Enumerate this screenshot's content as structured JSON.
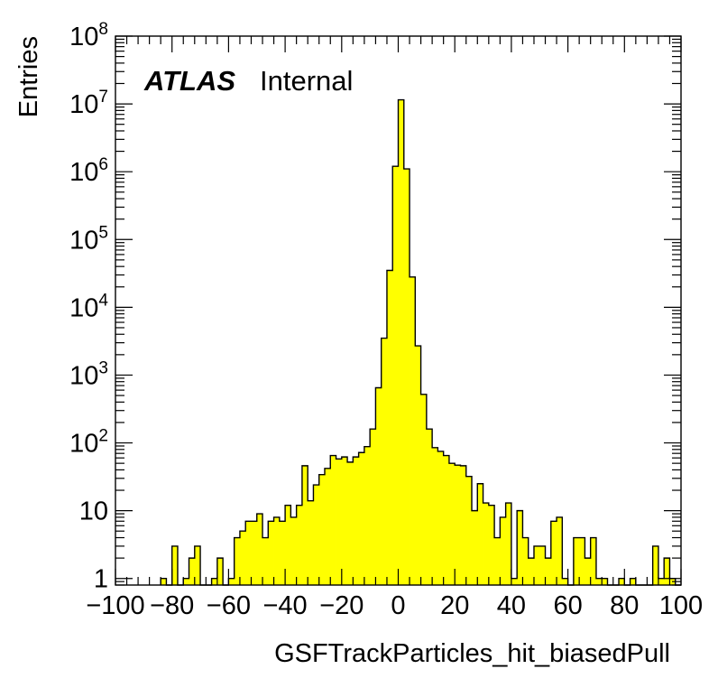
{
  "chart_data": {
    "type": "bar",
    "style": "histogram-step",
    "fill_color": "#ffff00",
    "line_color": "#000000",
    "label_brand": "ATLAS",
    "label_status": "Internal",
    "xlabel": "GSFTrackParticles_hit_biasedPull",
    "ylabel": "Entries",
    "xlim": [
      -100,
      100
    ],
    "ylim": [
      0.8,
      100000000
    ],
    "log_y": true,
    "grid": false,
    "bin_width": 2,
    "x_ticks": [
      "−100",
      "−80",
      "−60",
      "−40",
      "−20",
      "0",
      "20",
      "40",
      "60",
      "80",
      "100"
    ],
    "x_tick_values": [
      -100,
      -80,
      -60,
      -40,
      -20,
      0,
      20,
      40,
      60,
      80,
      100
    ],
    "y_ticks": [
      {
        "value": 1,
        "base": "1",
        "exp": ""
      },
      {
        "value": 10,
        "base": "10",
        "exp": ""
      },
      {
        "value": 100,
        "base": "10",
        "exp": "2"
      },
      {
        "value": 1000,
        "base": "10",
        "exp": "3"
      },
      {
        "value": 10000,
        "base": "10",
        "exp": "4"
      },
      {
        "value": 100000,
        "base": "10",
        "exp": "5"
      },
      {
        "value": 1000000,
        "base": "10",
        "exp": "6"
      },
      {
        "value": 10000000,
        "base": "10",
        "exp": "7"
      },
      {
        "value": 100000000,
        "base": "10",
        "exp": "8"
      }
    ],
    "bins": [
      [
        -84,
        1
      ],
      [
        -82,
        0
      ],
      [
        -80,
        3
      ],
      [
        -78,
        0
      ],
      [
        -76,
        1
      ],
      [
        -74,
        2
      ],
      [
        -72,
        3
      ],
      [
        -70,
        0
      ],
      [
        -68,
        0
      ],
      [
        -66,
        1
      ],
      [
        -64,
        2
      ],
      [
        -62,
        0
      ],
      [
        -60,
        1
      ],
      [
        -58,
        4
      ],
      [
        -56,
        5
      ],
      [
        -54,
        7
      ],
      [
        -52,
        7
      ],
      [
        -50,
        9
      ],
      [
        -48,
        4
      ],
      [
        -46,
        7
      ],
      [
        -44,
        8
      ],
      [
        -42,
        7
      ],
      [
        -40,
        12
      ],
      [
        -38,
        8
      ],
      [
        -36,
        12
      ],
      [
        -34,
        46
      ],
      [
        -32,
        14
      ],
      [
        -30,
        24
      ],
      [
        -28,
        34
      ],
      [
        -26,
        42
      ],
      [
        -24,
        65
      ],
      [
        -22,
        58
      ],
      [
        -20,
        62
      ],
      [
        -18,
        52
      ],
      [
        -16,
        62
      ],
      [
        -14,
        72
      ],
      [
        -12,
        88
      ],
      [
        -10,
        160
      ],
      [
        -8,
        650
      ],
      [
        -6,
        3500
      ],
      [
        -4,
        35000
      ],
      [
        -2,
        1200000
      ],
      [
        0,
        11500000
      ],
      [
        2,
        1100000
      ],
      [
        4,
        28000
      ],
      [
        6,
        2700
      ],
      [
        8,
        520
      ],
      [
        10,
        160
      ],
      [
        12,
        85
      ],
      [
        14,
        75
      ],
      [
        16,
        65
      ],
      [
        18,
        50
      ],
      [
        20,
        47
      ],
      [
        22,
        46
      ],
      [
        24,
        32
      ],
      [
        26,
        10
      ],
      [
        28,
        25
      ],
      [
        30,
        13
      ],
      [
        32,
        12
      ],
      [
        34,
        4
      ],
      [
        36,
        8
      ],
      [
        38,
        13
      ],
      [
        40,
        1
      ],
      [
        42,
        10
      ],
      [
        44,
        4
      ],
      [
        46,
        2
      ],
      [
        48,
        3
      ],
      [
        50,
        3
      ],
      [
        52,
        2
      ],
      [
        54,
        7
      ],
      [
        56,
        8
      ],
      [
        58,
        1
      ],
      [
        60,
        0
      ],
      [
        62,
        4
      ],
      [
        64,
        4
      ],
      [
        66,
        2
      ],
      [
        68,
        4
      ],
      [
        70,
        1
      ],
      [
        72,
        1
      ],
      [
        74,
        0
      ],
      [
        76,
        0
      ],
      [
        78,
        1
      ],
      [
        80,
        0
      ],
      [
        82,
        1
      ],
      [
        84,
        0
      ],
      [
        86,
        0
      ],
      [
        88,
        0
      ],
      [
        90,
        3
      ],
      [
        92,
        1
      ],
      [
        94,
        2
      ],
      [
        96,
        1
      ],
      [
        98,
        0
      ]
    ]
  }
}
